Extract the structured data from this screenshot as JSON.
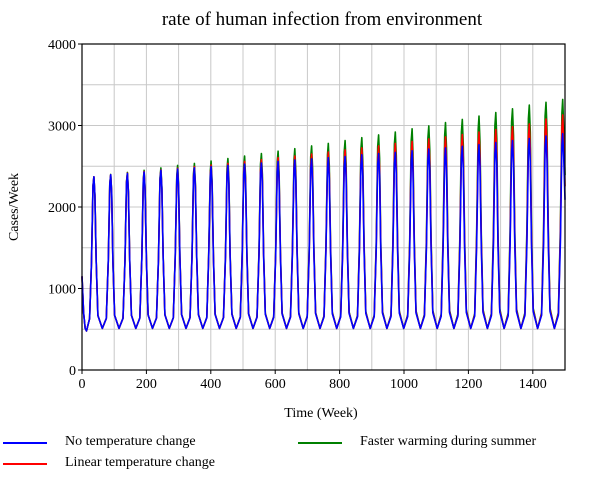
{
  "chart_data": {
    "type": "line",
    "title": "rate of human infection from environment",
    "xlabel": "Time (Week)",
    "ylabel": "Cases/Week",
    "xlim": [
      0,
      1500
    ],
    "ylim": [
      0,
      4000
    ],
    "xticks": [
      0,
      200,
      400,
      600,
      800,
      1000,
      1200,
      1400
    ],
    "yticks": [
      0,
      1000,
      2000,
      3000,
      4000
    ],
    "grid": true,
    "legend_position": "bottom",
    "period_weeks": 52,
    "trough": 480,
    "series": [
      {
        "name": "No temperature change",
        "color": "#0000ff",
        "peaks": [
          [
            37,
            2370
          ],
          [
            89,
            2395
          ],
          [
            141,
            2410
          ],
          [
            193,
            2430
          ],
          [
            245,
            2450
          ],
          [
            297,
            2465
          ],
          [
            349,
            2480
          ],
          [
            401,
            2495
          ],
          [
            453,
            2510
          ],
          [
            505,
            2525
          ],
          [
            557,
            2540
          ],
          [
            609,
            2560
          ],
          [
            661,
            2575
          ],
          [
            713,
            2590
          ],
          [
            765,
            2605
          ],
          [
            817,
            2620
          ],
          [
            869,
            2640
          ],
          [
            921,
            2655
          ],
          [
            973,
            2670
          ],
          [
            1025,
            2690
          ],
          [
            1077,
            2710
          ],
          [
            1129,
            2725
          ],
          [
            1181,
            2745
          ],
          [
            1233,
            2765
          ],
          [
            1285,
            2790
          ],
          [
            1337,
            2815
          ],
          [
            1389,
            2840
          ],
          [
            1441,
            2870
          ],
          [
            1493,
            2900
          ]
        ]
      },
      {
        "name": "Linear temperature change",
        "color": "#ff0000",
        "peaks": [
          [
            37,
            2370
          ],
          [
            89,
            2395
          ],
          [
            141,
            2415
          ],
          [
            193,
            2435
          ],
          [
            245,
            2455
          ],
          [
            297,
            2475
          ],
          [
            349,
            2495
          ],
          [
            401,
            2515
          ],
          [
            453,
            2535
          ],
          [
            505,
            2560
          ],
          [
            557,
            2580
          ],
          [
            609,
            2605
          ],
          [
            661,
            2625
          ],
          [
            713,
            2650
          ],
          [
            765,
            2675
          ],
          [
            817,
            2700
          ],
          [
            869,
            2725
          ],
          [
            921,
            2750
          ],
          [
            973,
            2780
          ],
          [
            1025,
            2805
          ],
          [
            1077,
            2835
          ],
          [
            1129,
            2860
          ],
          [
            1181,
            2890
          ],
          [
            1233,
            2920
          ],
          [
            1285,
            2950
          ],
          [
            1337,
            2985
          ],
          [
            1389,
            3020
          ],
          [
            1441,
            3080
          ],
          [
            1493,
            3130
          ]
        ]
      },
      {
        "name": "Faster warming during summer",
        "color": "#008000",
        "peaks": [
          [
            37,
            2370
          ],
          [
            89,
            2400
          ],
          [
            141,
            2425
          ],
          [
            193,
            2450
          ],
          [
            245,
            2480
          ],
          [
            297,
            2510
          ],
          [
            349,
            2535
          ],
          [
            401,
            2565
          ],
          [
            453,
            2595
          ],
          [
            505,
            2625
          ],
          [
            557,
            2655
          ],
          [
            609,
            2685
          ],
          [
            661,
            2715
          ],
          [
            713,
            2750
          ],
          [
            765,
            2780
          ],
          [
            817,
            2815
          ],
          [
            869,
            2850
          ],
          [
            921,
            2885
          ],
          [
            973,
            2920
          ],
          [
            1025,
            2960
          ],
          [
            1077,
            2995
          ],
          [
            1129,
            3035
          ],
          [
            1181,
            3075
          ],
          [
            1233,
            3115
          ],
          [
            1285,
            3160
          ],
          [
            1337,
            3205
          ],
          [
            1389,
            3250
          ],
          [
            1441,
            3285
          ],
          [
            1493,
            3320
          ]
        ]
      }
    ]
  }
}
